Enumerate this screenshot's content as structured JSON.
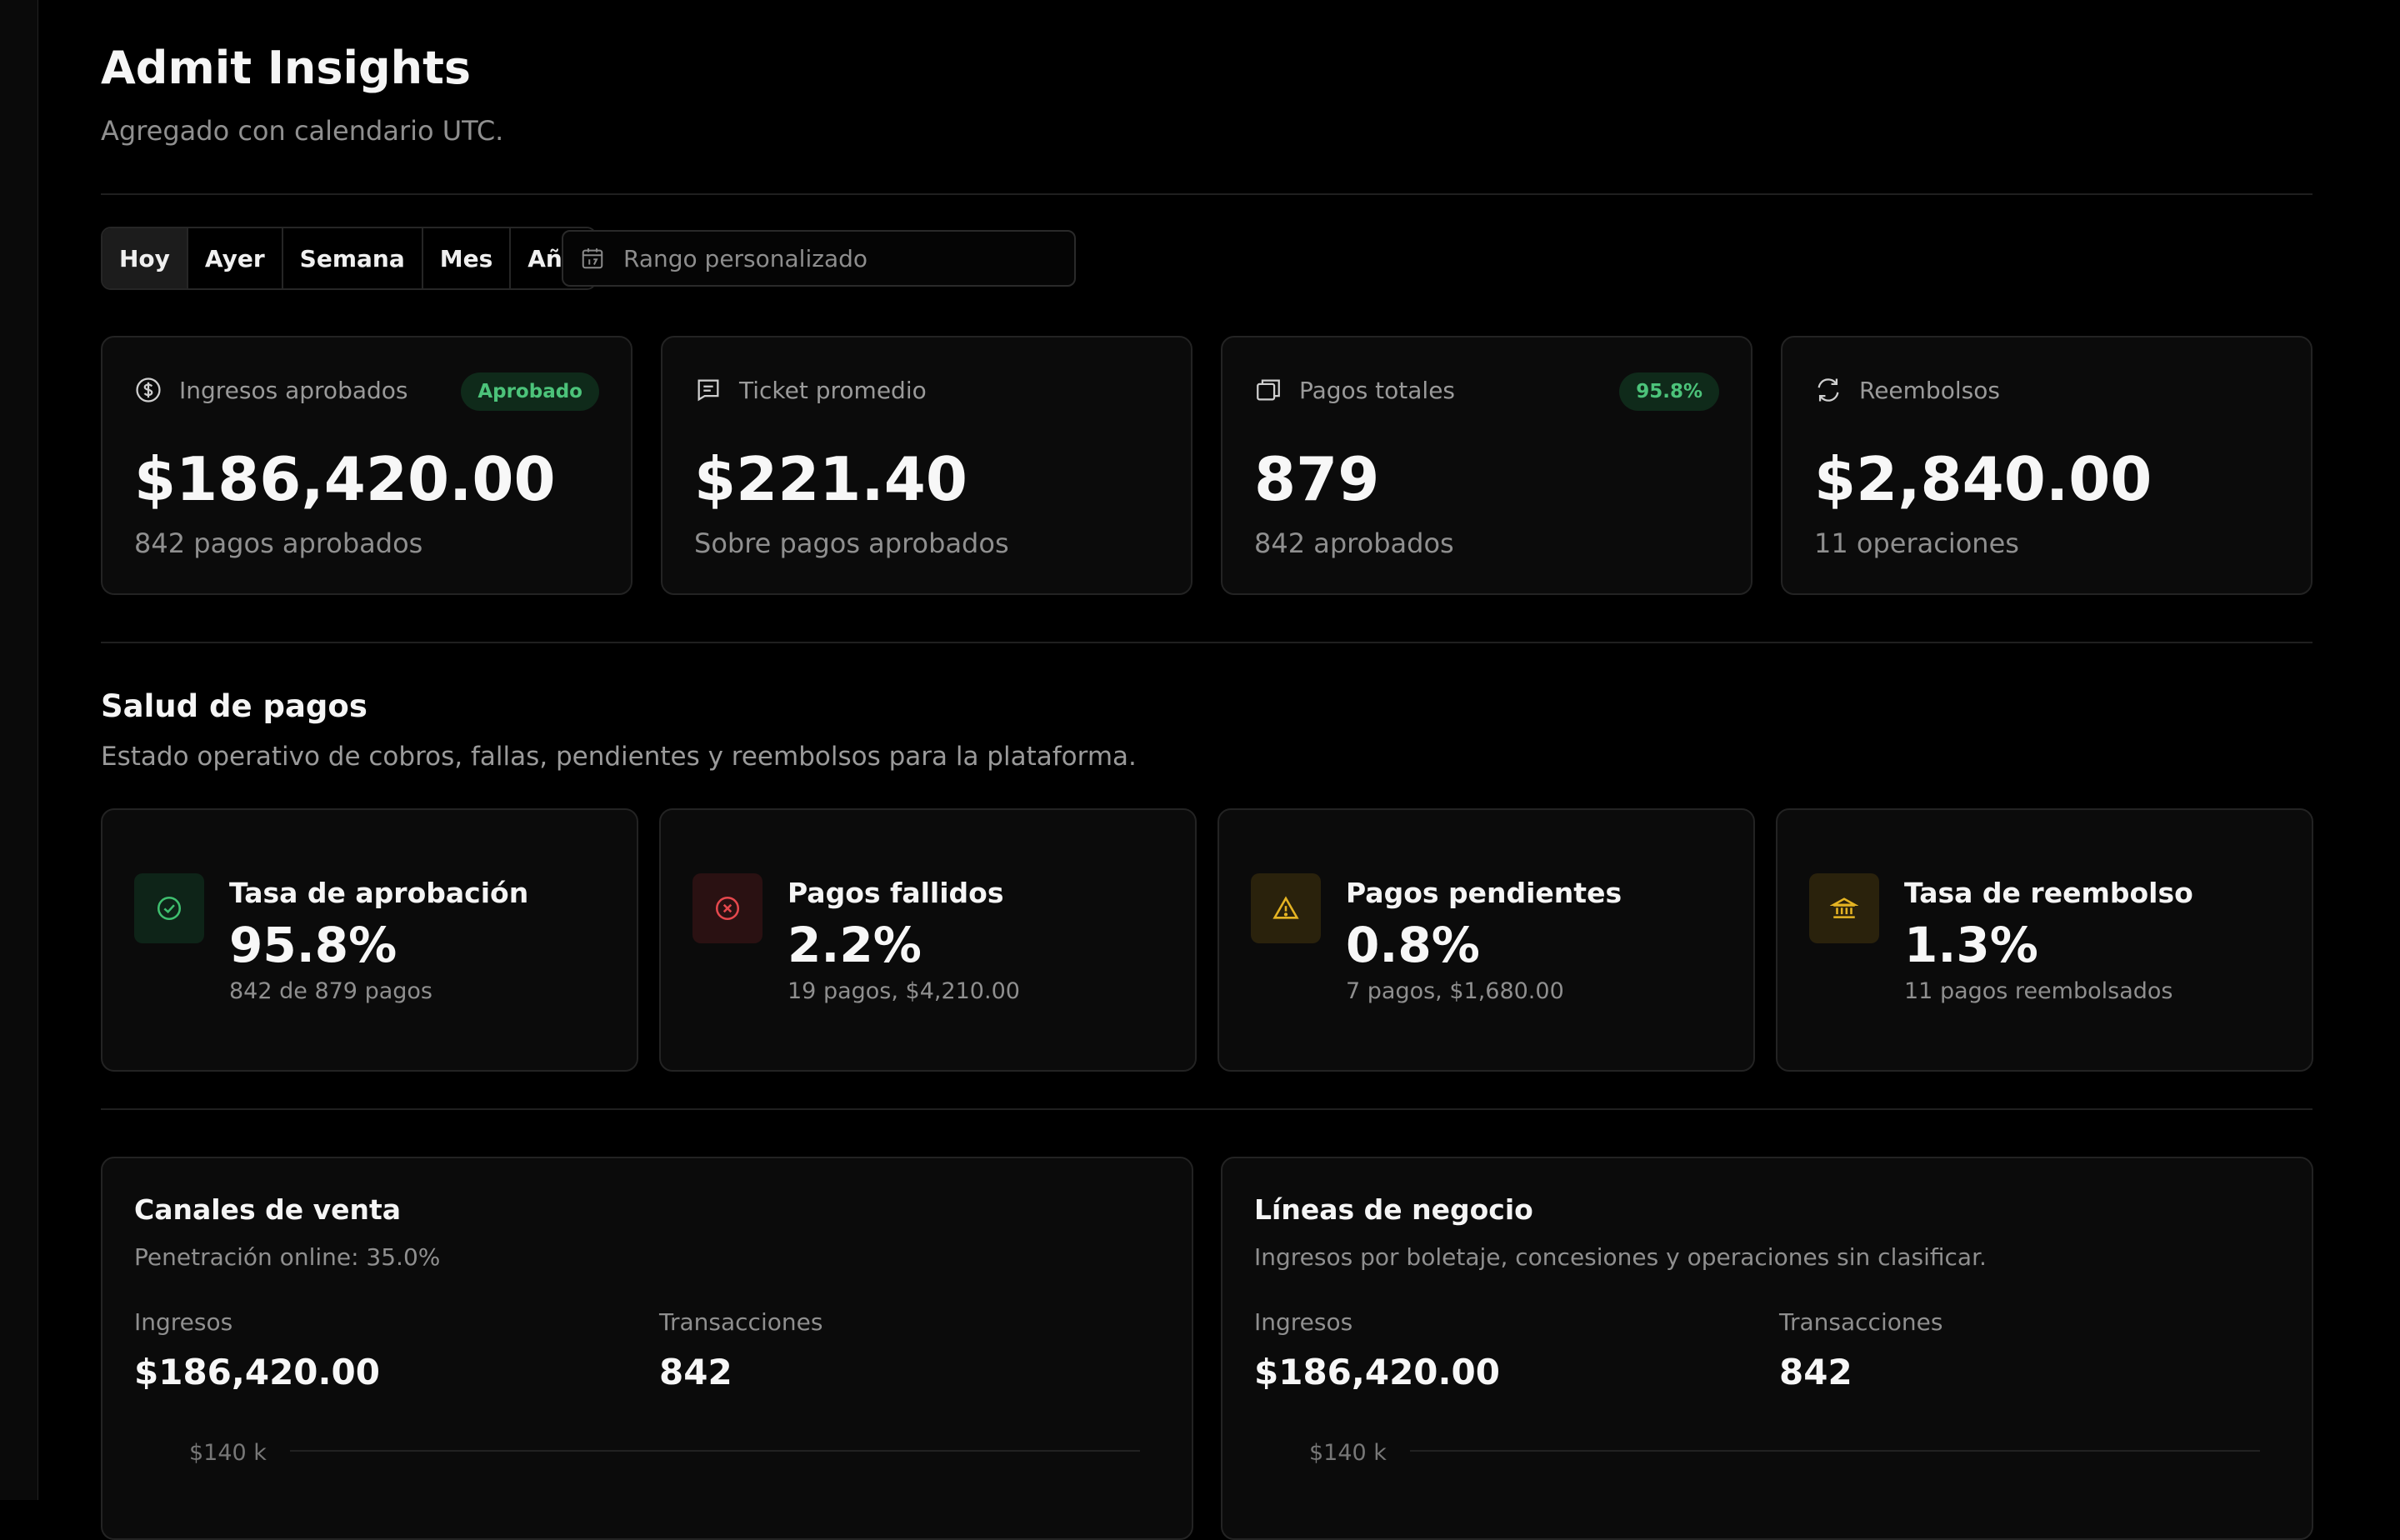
{
  "header": {
    "title": "Admit Insights",
    "subtitle": "Agregado con calendario UTC."
  },
  "filters": {
    "tabs": [
      {
        "label": "Hoy",
        "active": true
      },
      {
        "label": "Ayer",
        "active": false
      },
      {
        "label": "Semana",
        "active": false
      },
      {
        "label": "Mes",
        "active": false
      },
      {
        "label": "Año",
        "active": false
      }
    ],
    "custom_range_placeholder": "Rango personalizado",
    "custom_range_icon": "calendar-icon"
  },
  "kpis": [
    {
      "icon": "dollar-circle-icon",
      "label": "Ingresos aprobados",
      "badge": "Aprobado",
      "value": "$186,420.00",
      "sub": "842 pagos aprobados"
    },
    {
      "icon": "receipt-icon",
      "label": "Ticket promedio",
      "badge": "",
      "value": "$221.40",
      "sub": "Sobre pagos aprobados"
    },
    {
      "icon": "stack-icon",
      "label": "Pagos totales",
      "badge": "95.8%",
      "value": "879",
      "sub": "842 aprobados"
    },
    {
      "icon": "refresh-icon",
      "label": "Reembolsos",
      "badge": "",
      "value": "$2,840.00",
      "sub": "11 operaciones"
    }
  ],
  "health": {
    "title": "Salud de pagos",
    "description": "Estado operativo de cobros, fallas, pendientes y reembolsos para la plataforma.",
    "items": [
      {
        "icon": "check-circle-icon",
        "title": "Tasa de aprobación",
        "value": "95.8%",
        "sub": "842 de 879 pagos",
        "color": "#3fbf6f",
        "bg": "#0e2418"
      },
      {
        "icon": "x-circle-icon",
        "title": "Pagos fallidos",
        "value": "2.2%",
        "sub": "19 pagos, $4,210.00",
        "color": "#e5484d",
        "bg": "#2a1112"
      },
      {
        "icon": "warning-triangle-icon",
        "title": "Pagos pendientes",
        "value": "0.8%",
        "sub": "7 pagos, $1,680.00",
        "color": "#e5b423",
        "bg": "#2a220c"
      },
      {
        "icon": "bank-icon",
        "title": "Tasa de reembolso",
        "value": "1.3%",
        "sub": "11 pagos reembolsados",
        "color": "#e5b423",
        "bg": "#2a220c"
      }
    ]
  },
  "panels": [
    {
      "title": "Canales de venta",
      "description": "Penetración online: 35.0%",
      "metrics": [
        {
          "label": "Ingresos",
          "value": "$186,420.00"
        },
        {
          "label": "Transacciones",
          "value": "842"
        }
      ],
      "axis_top": "$140 k"
    },
    {
      "title": "Líneas de negocio",
      "description": "Ingresos por boletaje, concesiones y operaciones sin clasificar.",
      "metrics": [
        {
          "label": "Ingresos",
          "value": "$186,420.00"
        },
        {
          "label": "Transacciones",
          "value": "842"
        }
      ],
      "axis_top": "$140 k"
    }
  ]
}
